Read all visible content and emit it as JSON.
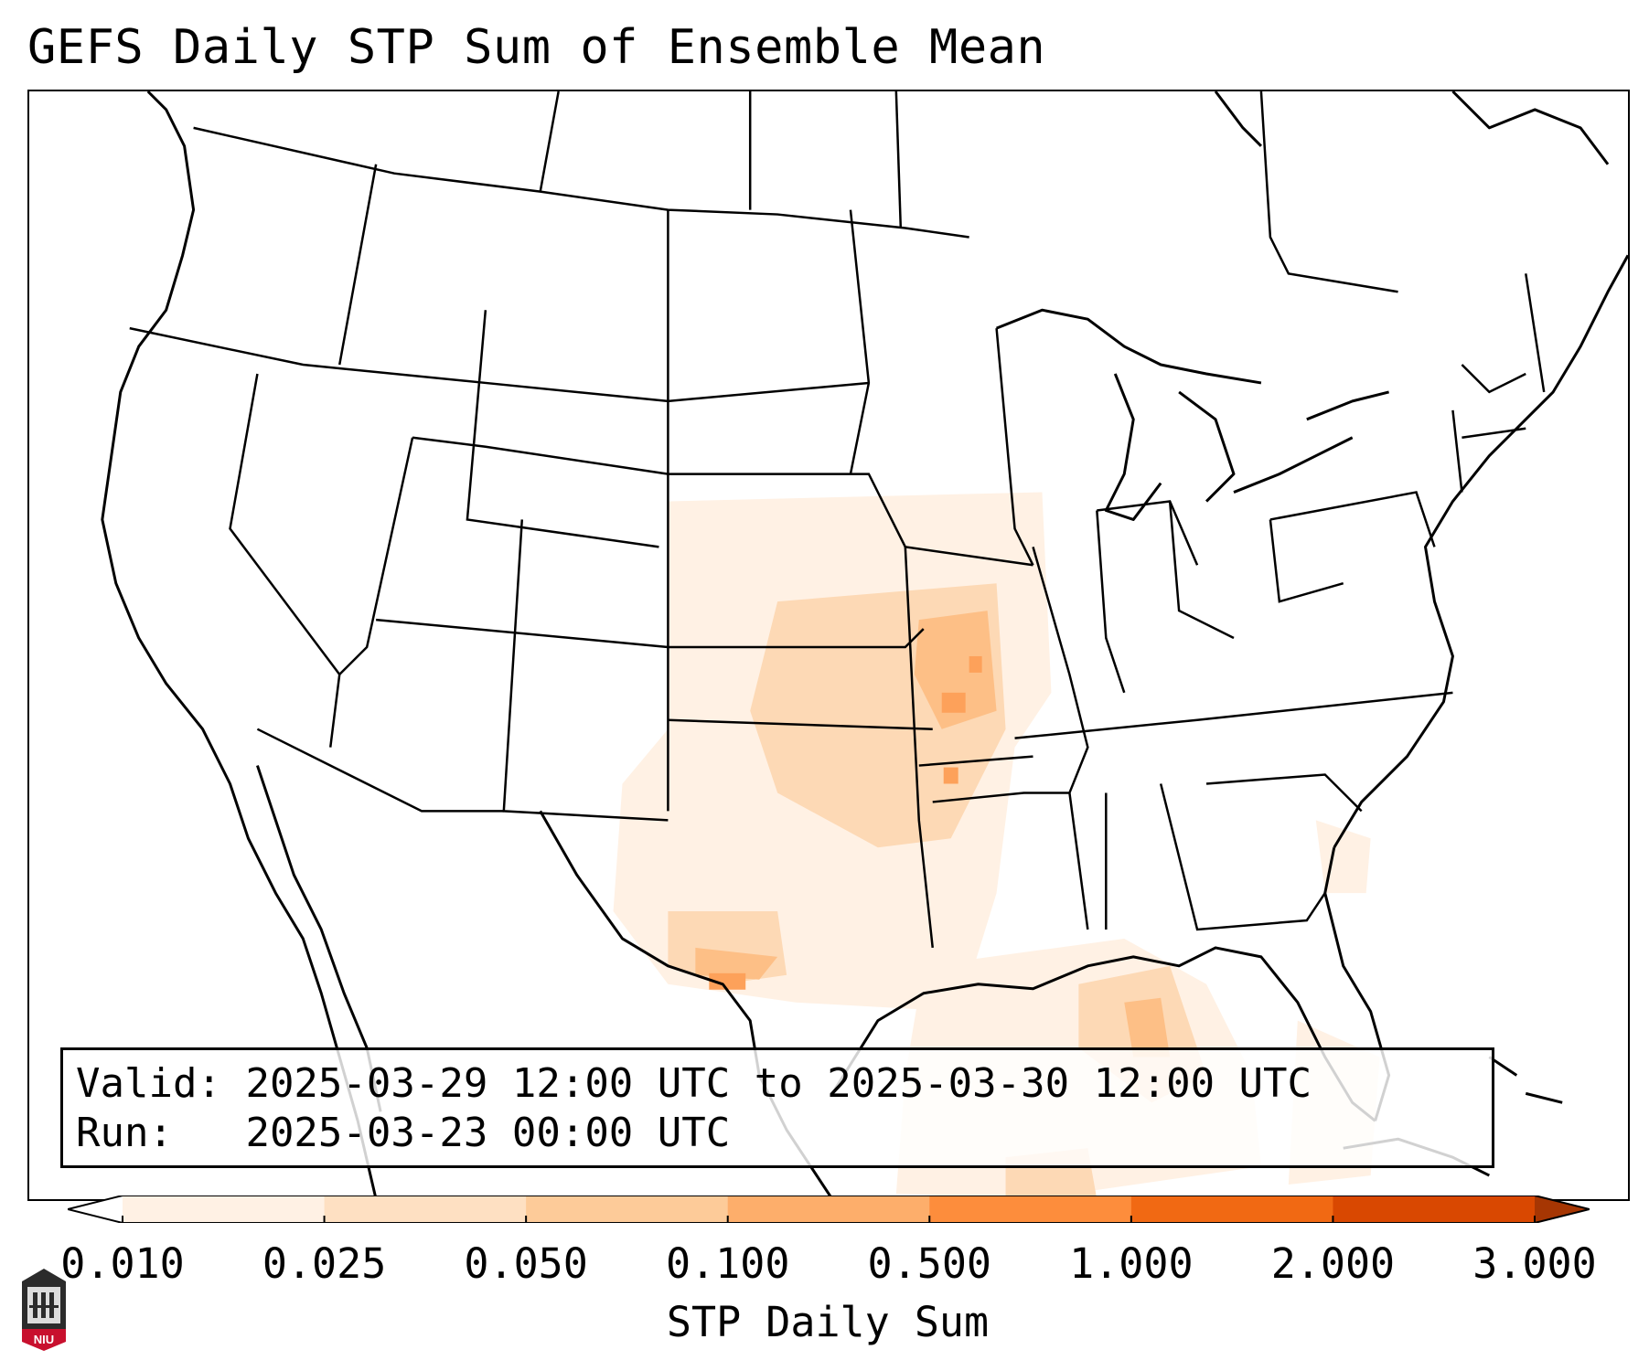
{
  "title": "GEFS Daily STP Sum of Ensemble Mean",
  "info": {
    "valid_label": "Valid:",
    "valid_value": "2025-03-29 12:00 UTC to 2025-03-30 12:00 UTC",
    "run_label": "Run:",
    "run_value": "2025-03-23 00:00 UTC"
  },
  "colorbar": {
    "label": "STP Daily Sum",
    "ticks": [
      "0.010",
      "0.025",
      "0.050",
      "0.100",
      "0.500",
      "1.000",
      "2.000",
      "3.000"
    ],
    "colors": [
      "#fff1e4",
      "#fee0c2",
      "#fdcb99",
      "#fdae6b",
      "#fd8d3c",
      "#f16913",
      "#d94801",
      "#a63603"
    ],
    "extend": "both"
  },
  "map": {
    "region": "CONUS",
    "fill_colors": {
      "light": "#fff1e4",
      "medium": "#fdd9b5",
      "strong": "#fdbf86",
      "max": "#fda15a"
    }
  },
  "logo_text": "NIU"
}
